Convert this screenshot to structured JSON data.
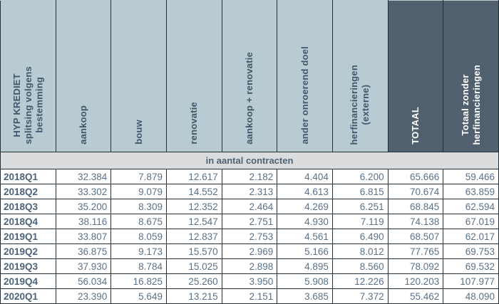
{
  "table": {
    "corner_title": "HYP KREDIET\nsplitsing volgens\nbestemming",
    "columns": [
      {
        "label": "aankoop"
      },
      {
        "label": "bouw"
      },
      {
        "label": "renovatie"
      },
      {
        "label": "aankoop + renovatie"
      },
      {
        "label": "ander onroerend doel"
      },
      {
        "label": "herfinancieringen\n(externe)"
      },
      {
        "label": "TOTAAL"
      },
      {
        "label": "Totaal zonder\nherfinancieringen"
      }
    ],
    "section_band": "in aantal contracten",
    "rows": [
      {
        "label": "2018Q1",
        "values": [
          "32.384",
          "7.879",
          "12.617",
          "2.182",
          "4.404",
          "6.200",
          "65.666",
          "59.466"
        ]
      },
      {
        "label": "2018Q2",
        "values": [
          "33.302",
          "9.079",
          "14.552",
          "2.313",
          "4.613",
          "6.815",
          "70.674",
          "63.859"
        ]
      },
      {
        "label": "2018Q3",
        "values": [
          "35.200",
          "8.309",
          "12.352",
          "2.464",
          "4.269",
          "6.251",
          "68.845",
          "62.594"
        ]
      },
      {
        "label": "2018Q4",
        "values": [
          "38.116",
          "8.675",
          "12.547",
          "2.751",
          "4.930",
          "7.119",
          "74.138",
          "67.019"
        ]
      },
      {
        "label": "2019Q1",
        "values": [
          "33.807",
          "8.059",
          "12.837",
          "2.753",
          "4.561",
          "6.490",
          "68.507",
          "62.017"
        ]
      },
      {
        "label": "2019Q2",
        "values": [
          "36.875",
          "9.173",
          "15.570",
          "2.969",
          "5.166",
          "8.012",
          "77.765",
          "69.753"
        ]
      },
      {
        "label": "2019Q3",
        "values": [
          "37.930",
          "8.784",
          "15.025",
          "2.898",
          "4.895",
          "8.560",
          "78.092",
          "69.532"
        ]
      },
      {
        "label": "2019Q4",
        "values": [
          "56.034",
          "16.825",
          "25.260",
          "3.950",
          "5.908",
          "12.226",
          "120.203",
          "107.977"
        ]
      },
      {
        "label": "2020Q1",
        "values": [
          "23.390",
          "5.649",
          "13.215",
          "2.151",
          "3.685",
          "7.372",
          "55.462",
          "48.090"
        ]
      }
    ]
  },
  "colors": {
    "header_bg": "#b9cbd2",
    "header_dark_bg": "#51606e",
    "band_bg": "#dadcdd",
    "border": "#232e37",
    "header_text": "#40566a",
    "data_text": "#5b7186",
    "dark_header_text": "#ffffff"
  },
  "chart_data": {
    "type": "table",
    "title": "HYP KREDIET splitsing volgens bestemming",
    "section": "in aantal contracten",
    "columns": [
      "aankoop",
      "bouw",
      "renovatie",
      "aankoop + renovatie",
      "ander onroerend doel",
      "herfinancieringen (externe)",
      "TOTAAL",
      "Totaal zonder herfinancieringen"
    ],
    "row_labels": [
      "2018Q1",
      "2018Q2",
      "2018Q3",
      "2018Q4",
      "2019Q1",
      "2019Q2",
      "2019Q3",
      "2019Q4",
      "2020Q1"
    ],
    "rows": [
      [
        32384,
        7879,
        12617,
        2182,
        4404,
        6200,
        65666,
        59466
      ],
      [
        33302,
        9079,
        14552,
        2313,
        4613,
        6815,
        70674,
        63859
      ],
      [
        35200,
        8309,
        12352,
        2464,
        4269,
        6251,
        68845,
        62594
      ],
      [
        38116,
        8675,
        12547,
        2751,
        4930,
        7119,
        74138,
        67019
      ],
      [
        33807,
        8059,
        12837,
        2753,
        4561,
        6490,
        68507,
        62017
      ],
      [
        36875,
        9173,
        15570,
        2969,
        5166,
        8012,
        77765,
        69753
      ],
      [
        37930,
        8784,
        15025,
        2898,
        4895,
        8560,
        78092,
        69532
      ],
      [
        56034,
        16825,
        25260,
        3950,
        5908,
        12226,
        120203,
        107977
      ],
      [
        23390,
        5649,
        13215,
        2151,
        3685,
        7372,
        55462,
        48090
      ]
    ]
  }
}
